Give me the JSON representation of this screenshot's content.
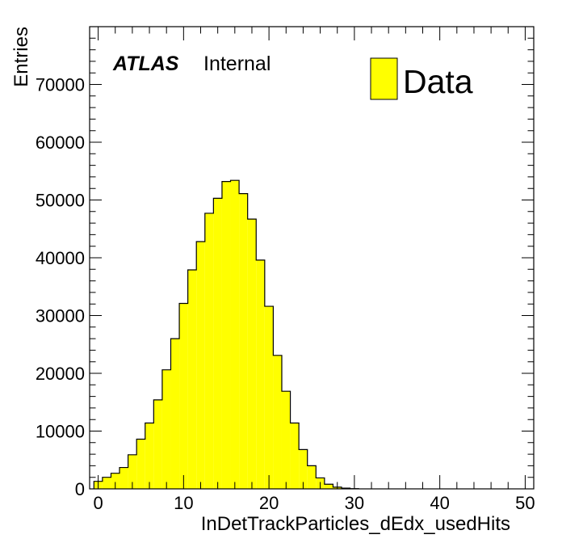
{
  "chart_data": {
    "type": "bar",
    "style": "histogram",
    "title": "",
    "xlabel": "InDetTrackParticles_dEdx_usedHits",
    "ylabel": "Entries",
    "xlim": [
      -1,
      51
    ],
    "ylim": [
      0,
      80000
    ],
    "x_ticks": [
      0,
      10,
      20,
      30,
      40,
      50
    ],
    "x_tick_labels": [
      "0",
      "10",
      "20",
      "30",
      "40",
      "50"
    ],
    "y_ticks": [
      0,
      10000,
      20000,
      30000,
      40000,
      50000,
      60000,
      70000
    ],
    "y_tick_labels": [
      "0",
      "10000",
      "20000",
      "30000",
      "40000",
      "50000",
      "60000",
      "70000"
    ],
    "bin_edges_start": -0.5,
    "bin_width": 1,
    "bins": [
      {
        "x": 0,
        "value": 1300
      },
      {
        "x": 1,
        "value": 2000
      },
      {
        "x": 2,
        "value": 2700
      },
      {
        "x": 3,
        "value": 3700
      },
      {
        "x": 4,
        "value": 5900
      },
      {
        "x": 5,
        "value": 8600
      },
      {
        "x": 6,
        "value": 11400
      },
      {
        "x": 7,
        "value": 15400
      },
      {
        "x": 8,
        "value": 20600
      },
      {
        "x": 9,
        "value": 26000
      },
      {
        "x": 10,
        "value": 32100
      },
      {
        "x": 11,
        "value": 37900
      },
      {
        "x": 12,
        "value": 42800
      },
      {
        "x": 13,
        "value": 47700
      },
      {
        "x": 14,
        "value": 50300
      },
      {
        "x": 15,
        "value": 53200
      },
      {
        "x": 16,
        "value": 53400
      },
      {
        "x": 17,
        "value": 51100
      },
      {
        "x": 18,
        "value": 46700
      },
      {
        "x": 19,
        "value": 39600
      },
      {
        "x": 20,
        "value": 31600
      },
      {
        "x": 21,
        "value": 23100
      },
      {
        "x": 22,
        "value": 16900
      },
      {
        "x": 23,
        "value": 11400
      },
      {
        "x": 24,
        "value": 6800
      },
      {
        "x": 25,
        "value": 4000
      },
      {
        "x": 26,
        "value": 1900
      },
      {
        "x": 27,
        "value": 800
      },
      {
        "x": 28,
        "value": 300
      },
      {
        "x": 29,
        "value": 120
      },
      {
        "x": 30,
        "value": 40
      }
    ],
    "fill_color": "#ffff00",
    "line_color": "#000000",
    "legend": {
      "entries": [
        "Data"
      ],
      "placement": "top-right"
    },
    "annotations": {
      "atlas": "ATLAS",
      "status": "Internal"
    },
    "grid": false
  }
}
